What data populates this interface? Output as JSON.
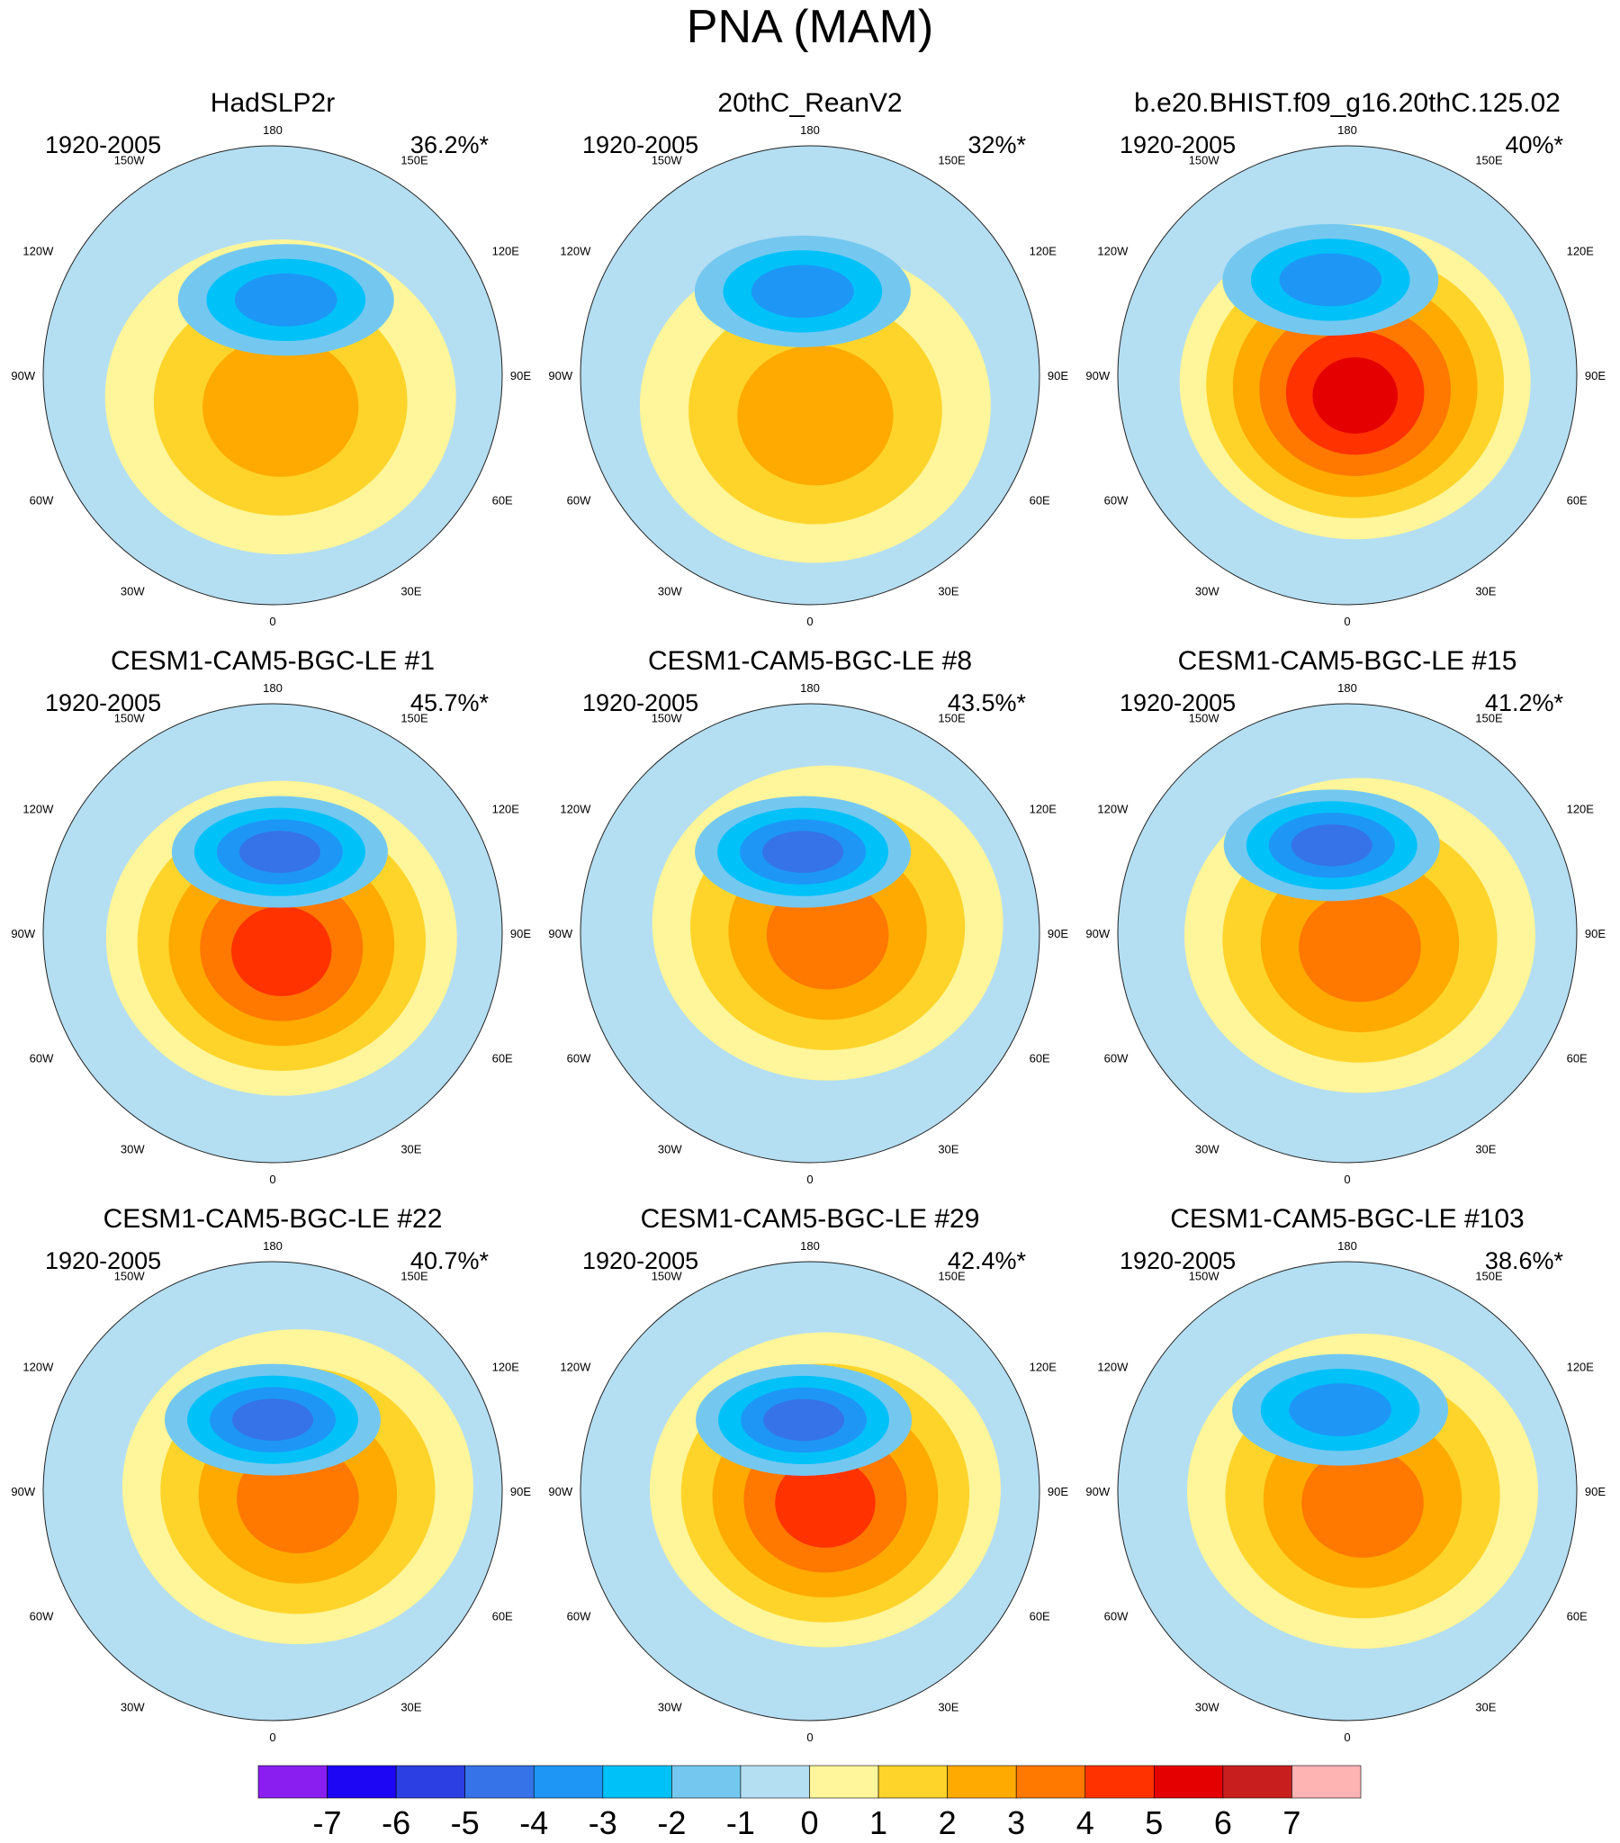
{
  "title": "PNA (MAM)",
  "chart_data": {
    "type": "heatmap",
    "projection": "north polar stereographic",
    "title": "PNA (MAM)",
    "longitude_labels": [
      "180",
      "150E",
      "120E",
      "90E",
      "60E",
      "30E",
      "0",
      "30W",
      "60W",
      "90W",
      "120W",
      "150W"
    ],
    "colorbar": {
      "orientation": "horizontal",
      "placement": "bottom",
      "tick_labels": [
        "-7",
        "-6",
        "-5",
        "-4",
        "-3",
        "-2",
        "-1",
        "0",
        "1",
        "2",
        "3",
        "4",
        "5",
        "6",
        "7"
      ],
      "levels": [
        -7,
        -6,
        -5,
        -4,
        -3,
        -2,
        -1,
        0,
        1,
        2,
        3,
        4,
        5,
        6,
        7
      ],
      "colors": [
        "#8a1ef0",
        "#1c06f4",
        "#2b3fe2",
        "#3672e8",
        "#1e96f6",
        "#00c1f8",
        "#74c8f0",
        "#b4def2",
        "#fff59a",
        "#ffd42a",
        "#ffaa00",
        "#ff7800",
        "#ff3200",
        "#e50000",
        "#c81e1e",
        "#ffb4b4"
      ]
    },
    "panels": [
      {
        "name": "HadSLP2r",
        "period": "1920-2005",
        "variance": "36.2%*",
        "low": {
          "lon": 170,
          "colat": 30,
          "min": -3
        },
        "high": {
          "lon": 20,
          "colat": 9,
          "max": 2
        }
      },
      {
        "name": "20thC_ReanV2",
        "period": "1920-2005",
        "variance": "32%*",
        "low": {
          "lon": 185,
          "colat": 33,
          "min": -3
        },
        "high": {
          "lon": 10,
          "colat": 12,
          "max": 2
        }
      },
      {
        "name": "b.e20.BHIST.f09_g16.20thC.125.02",
        "period": "1920-2005",
        "variance": "40%*",
        "low": {
          "lon": 190,
          "colat": 38,
          "min": -3
        },
        "high": {
          "lon": 50,
          "colat": 4,
          "max": 5
        }
      },
      {
        "name": "CESM1-CAM5-BGC-LE #1",
        "period": "1920-2005",
        "variance": "45.7%*",
        "low": {
          "lon": 175,
          "colat": 32,
          "min": -4
        },
        "high": {
          "lon": 60,
          "colat": 4,
          "max": 4
        }
      },
      {
        "name": "CESM1-CAM5-BGC-LE #8",
        "period": "1920-2005",
        "variance": "43.5%*",
        "low": {
          "lon": 185,
          "colat": 32,
          "min": -4
        },
        "high": {
          "lon": 120,
          "colat": 8,
          "max": 3
        }
      },
      {
        "name": "CESM1-CAM5-BGC-LE #15",
        "period": "1920-2005",
        "variance": "41.2%*",
        "low": {
          "lon": 190,
          "colat": 35,
          "min": -4
        },
        "high": {
          "lon": 80,
          "colat": 5,
          "max": 3
        }
      },
      {
        "name": "CESM1-CAM5-BGC-LE #22",
        "period": "1920-2005",
        "variance": "40.7%*",
        "low": {
          "lon": 180,
          "colat": 28,
          "min": -4
        },
        "high": {
          "lon": 100,
          "colat": 10,
          "max": 3
        }
      },
      {
        "name": "CESM1-CAM5-BGC-LE #29",
        "period": "1920-2005",
        "variance": "42.4%*",
        "low": {
          "lon": 185,
          "colat": 28,
          "min": -4
        },
        "high": {
          "lon": 95,
          "colat": 6,
          "max": 4
        }
      },
      {
        "name": "CESM1-CAM5-BGC-LE #103",
        "period": "1920-2005",
        "variance": "38.6%*",
        "low": {
          "lon": 185,
          "colat": 32,
          "min": -3
        },
        "high": {
          "lon": 90,
          "colat": 6,
          "max": 3
        }
      }
    ]
  }
}
